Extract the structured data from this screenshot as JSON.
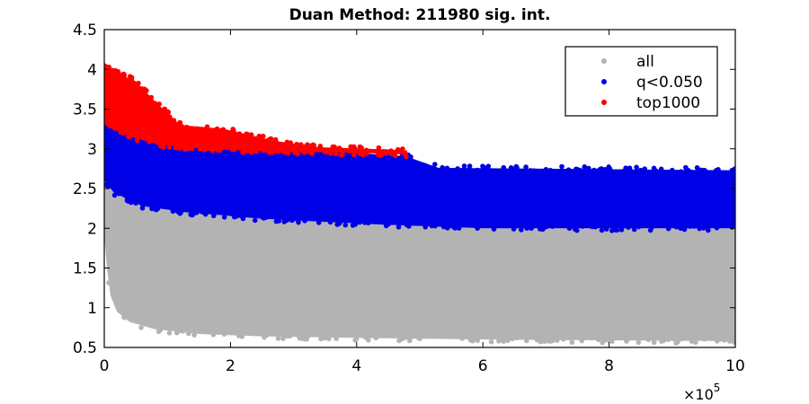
{
  "chart_data": {
    "type": "scatter",
    "title": "Duan Method: 211980 sig. int.",
    "xlabel": "",
    "ylabel": "",
    "x_exponent_label": "×10",
    "x_exponent_power": "5",
    "xlim": [
      0,
      1000000
    ],
    "ylim": [
      0.5,
      4.5
    ],
    "x_ticks": [
      0,
      200000,
      400000,
      600000,
      800000,
      1000000
    ],
    "x_tick_labels": [
      "0",
      "2",
      "4",
      "6",
      "8",
      "10"
    ],
    "y_ticks": [
      0.5,
      1,
      1.5,
      2,
      2.5,
      3,
      3.5,
      4,
      4.5
    ],
    "y_tick_labels": [
      "0.5",
      "1",
      "1.5",
      "2",
      "2.5",
      "3",
      "3.5",
      "4",
      "4.5"
    ],
    "grid": false,
    "legend_position": "top-right",
    "series": [
      {
        "name": "all",
        "color": "#b3b3b3",
        "upper": [
          [
            0,
            3.2
          ],
          [
            10000,
            2.85
          ],
          [
            30000,
            2.6
          ],
          [
            60000,
            2.45
          ],
          [
            100000,
            2.35
          ],
          [
            130000,
            2.2
          ],
          [
            200000,
            2.15
          ],
          [
            300000,
            2.12
          ],
          [
            400000,
            2.1
          ],
          [
            430000,
            2.05
          ],
          [
            600000,
            2.0
          ],
          [
            1000000,
            2.0
          ]
        ],
        "lower": [
          [
            0,
            1.9
          ],
          [
            5000,
            1.45
          ],
          [
            10000,
            1.15
          ],
          [
            20000,
            0.95
          ],
          [
            40000,
            0.82
          ],
          [
            80000,
            0.73
          ],
          [
            150000,
            0.67
          ],
          [
            250000,
            0.64
          ],
          [
            400000,
            0.62
          ],
          [
            600000,
            0.6
          ],
          [
            1000000,
            0.58
          ]
        ]
      },
      {
        "name": "q<0.050",
        "color": "#0000e6",
        "upper": [
          [
            0,
            3.65
          ],
          [
            15000,
            3.35
          ],
          [
            40000,
            3.25
          ],
          [
            100000,
            3.12
          ],
          [
            200000,
            3.05
          ],
          [
            300000,
            2.98
          ],
          [
            400000,
            2.95
          ],
          [
            480000,
            2.9
          ],
          [
            530000,
            2.76
          ],
          [
            1000000,
            2.73
          ]
        ],
        "lower": [
          [
            0,
            2.6
          ],
          [
            15000,
            2.45
          ],
          [
            60000,
            2.28
          ],
          [
            130000,
            2.2
          ],
          [
            250000,
            2.12
          ],
          [
            430000,
            2.05
          ],
          [
            600000,
            2.0
          ],
          [
            1000000,
            2.0
          ]
        ]
      },
      {
        "name": "top1000",
        "color": "#ff0000",
        "upper": [
          [
            0,
            4.05
          ],
          [
            20000,
            3.95
          ],
          [
            50000,
            3.85
          ],
          [
            80000,
            3.6
          ],
          [
            120000,
            3.3
          ],
          [
            190000,
            3.25
          ],
          [
            270000,
            3.1
          ],
          [
            340000,
            3.02
          ],
          [
            420000,
            3.0
          ],
          [
            480000,
            2.98
          ]
        ],
        "lower": [
          [
            0,
            3.35
          ],
          [
            40000,
            3.15
          ],
          [
            90000,
            3.05
          ],
          [
            160000,
            3.0
          ],
          [
            260000,
            2.97
          ],
          [
            400000,
            2.95
          ],
          [
            480000,
            2.93
          ]
        ]
      }
    ],
    "outliers": {
      "q<0.050": [
        [
          520000,
          2.75
        ],
        [
          560000,
          2.75
        ],
        [
          600000,
          2.74
        ],
        [
          650000,
          2.74
        ],
        [
          700000,
          2.74
        ],
        [
          750000,
          2.73
        ],
        [
          800000,
          2.73
        ],
        [
          850000,
          2.73
        ],
        [
          900000,
          2.73
        ],
        [
          950000,
          2.73
        ],
        [
          995000,
          2.73
        ]
      ]
    }
  }
}
